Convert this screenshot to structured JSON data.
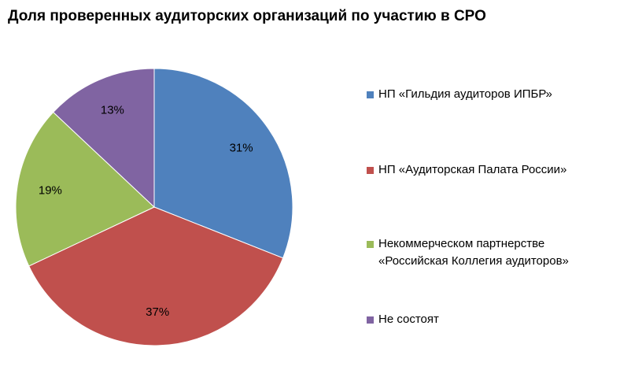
{
  "chart_data": {
    "type": "pie",
    "title": "Доля проверенных аудиторских организаций по участию в СРО",
    "categories": [
      "НП «Гильдия аудиторов ИПБР»",
      "НП «Аудиторская Палата России»",
      "Некоммерческом партнерстве\n«Российская Коллегия аудиторов»",
      "Не состоят"
    ],
    "values": [
      31,
      37,
      19,
      13
    ],
    "data_labels": [
      "31%",
      "37%",
      "19%",
      "13%"
    ],
    "colors": [
      "#4F81BD",
      "#C0504D",
      "#9BBB59",
      "#8064A2"
    ],
    "legend_position": "right"
  }
}
